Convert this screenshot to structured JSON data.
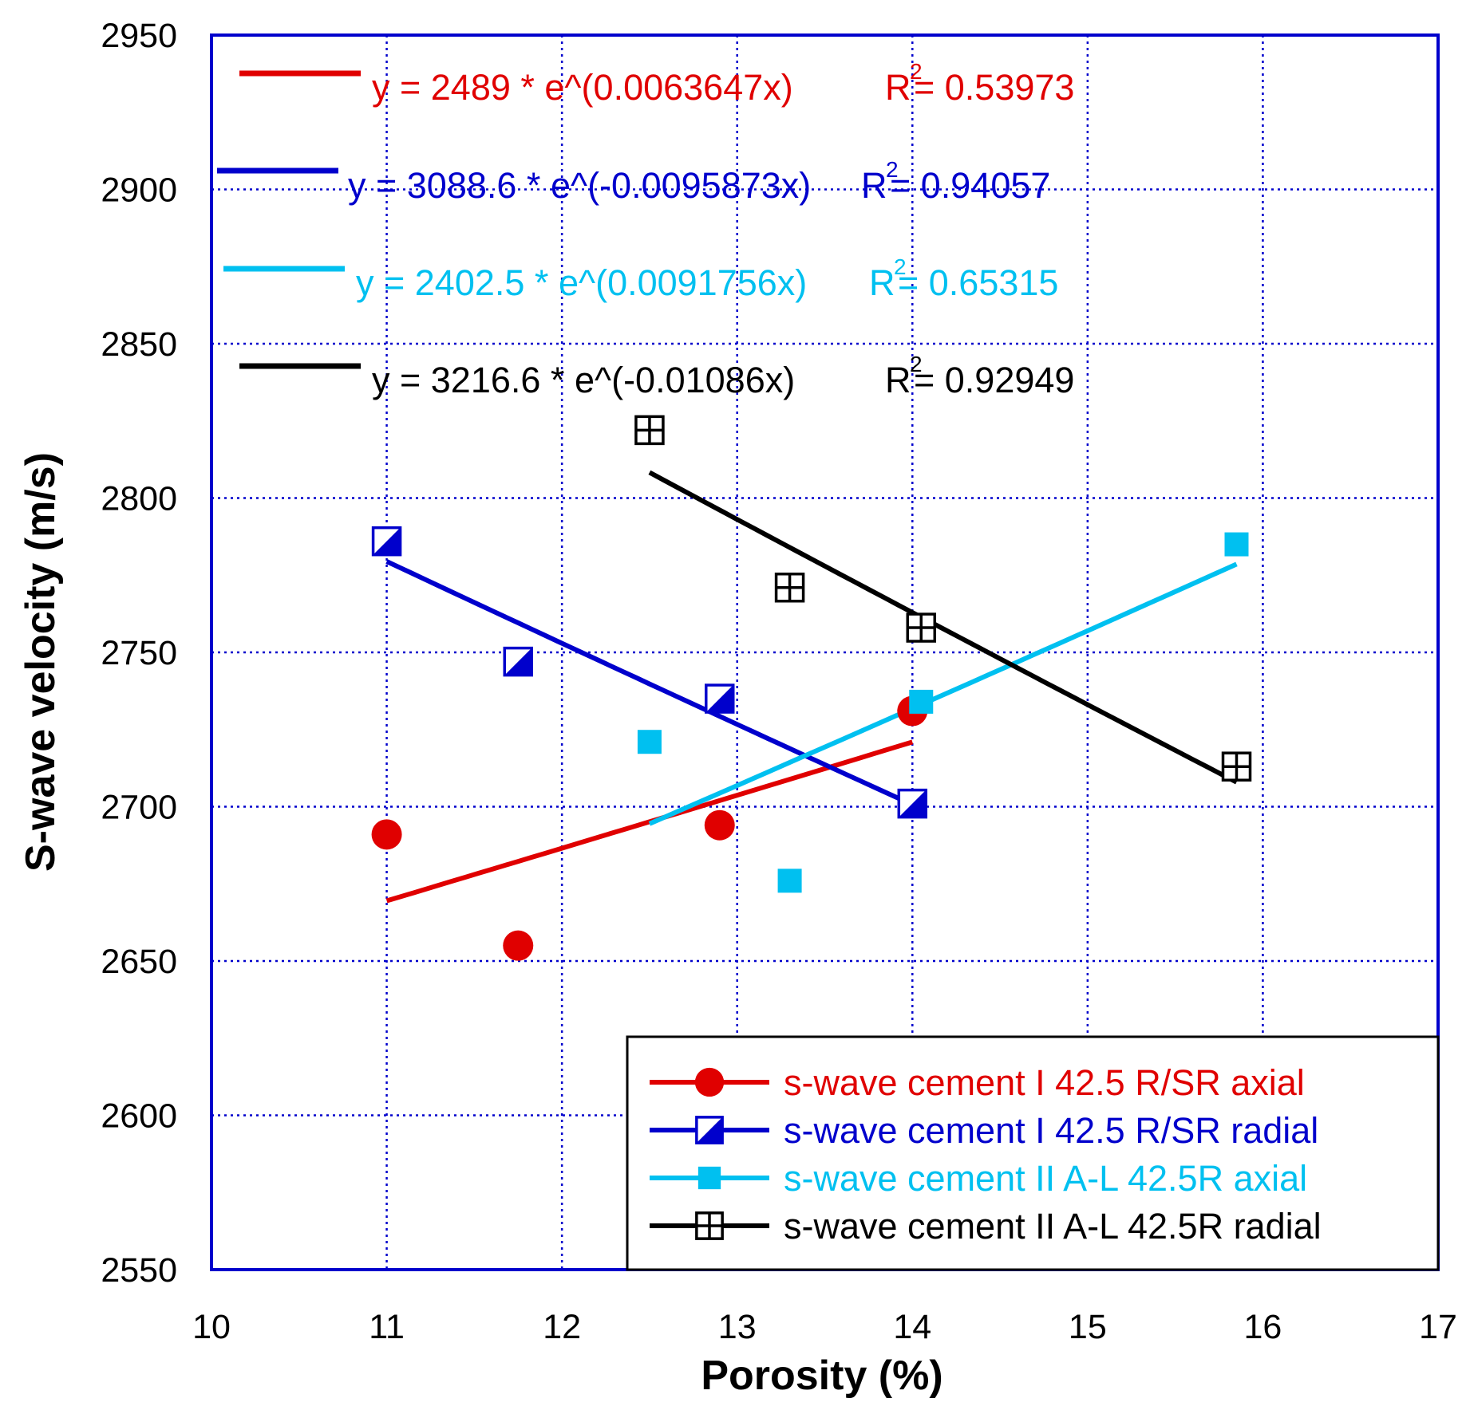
{
  "chart_data": {
    "type": "scatter",
    "xlabel": "Porosity (%)",
    "ylabel": "S-wave velocity (m/s)",
    "xlim": [
      10,
      17
    ],
    "ylim": [
      2550,
      2950
    ],
    "xticks": [
      "10",
      "11",
      "12",
      "13",
      "14",
      "15",
      "16",
      "17"
    ],
    "yticks": [
      "2550",
      "2600",
      "2650",
      "2700",
      "2750",
      "2800",
      "2850",
      "2900",
      "2950"
    ],
    "grid": true,
    "legend_position": "bottom-right",
    "series": [
      {
        "name": "s-wave cement I 42.5 R/SR axial",
        "color": "#e00000",
        "marker": "circle",
        "points": [
          [
            11.0,
            2691
          ],
          [
            11.75,
            2655
          ],
          [
            12.9,
            2694
          ],
          [
            14.0,
            2731
          ]
        ],
        "fit": {
          "equation": "y = 2489 * e^(0.0063647x)",
          "r2_label": "R",
          "r2_value": "= 0.53973",
          "a": 2489,
          "b": 0.0063647,
          "x_range": [
            11.0,
            14.0
          ]
        }
      },
      {
        "name": "s-wave cement I 42.5 R/SR radial",
        "color": "#0000cc",
        "marker": "half-square",
        "points": [
          [
            11.0,
            2786
          ],
          [
            11.75,
            2747
          ],
          [
            12.9,
            2735
          ],
          [
            14.0,
            2701
          ]
        ],
        "fit": {
          "equation": "y = 3088.6 * e^(-0.0095873x)",
          "r2_label": "R",
          "r2_value": "= 0.94057",
          "a": 3088.6,
          "b": -0.0095873,
          "x_range": [
            11.0,
            14.0
          ]
        }
      },
      {
        "name": "s-wave cement II  A-L 42.5R  axial",
        "color": "#00c0f0",
        "marker": "square",
        "points": [
          [
            12.5,
            2721
          ],
          [
            13.3,
            2676
          ],
          [
            14.05,
            2734
          ],
          [
            15.85,
            2785
          ]
        ],
        "fit": {
          "equation": "y = 2402.5 * e^(0.0091756x)",
          "r2_label": "R",
          "r2_value": "= 0.65315",
          "a": 2402.5,
          "b": 0.0091756,
          "x_range": [
            12.5,
            15.85
          ]
        }
      },
      {
        "name": "s-wave cement II  A-L 42.5R radial",
        "color": "#000000",
        "marker": "boxed-plus",
        "points": [
          [
            12.5,
            2822
          ],
          [
            13.3,
            2771
          ],
          [
            14.05,
            2758
          ],
          [
            15.85,
            2713
          ]
        ],
        "fit": {
          "equation": "y = 3216.6 * e^(-0.01086x)",
          "r2_label": "R",
          "r2_value": "= 0.92949",
          "a": 3216.6,
          "b": -0.01086,
          "x_range": [
            12.5,
            15.85
          ]
        }
      }
    ],
    "r2_superscript": "2"
  }
}
